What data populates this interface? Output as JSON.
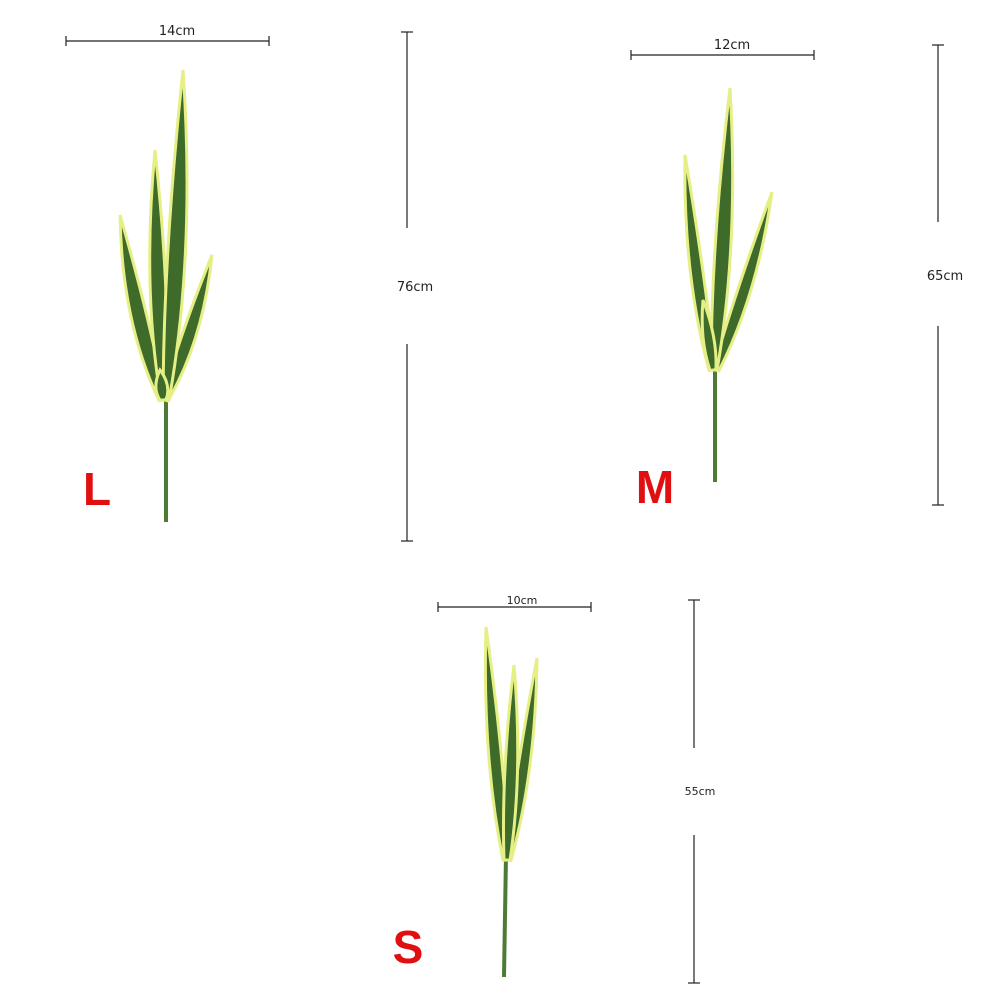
{
  "accent_color": "#e01010",
  "leaf_colors": {
    "fill": "#3e6a2a",
    "edge": "#e6ef86",
    "stem": "#4d7a34"
  },
  "variants": [
    {
      "size_label": "L",
      "width_label": "14cm",
      "height_label": "76cm"
    },
    {
      "size_label": "M",
      "width_label": "12cm",
      "height_label": "65cm"
    },
    {
      "size_label": "S",
      "width_label": "10cm",
      "height_label": "55cm"
    }
  ]
}
